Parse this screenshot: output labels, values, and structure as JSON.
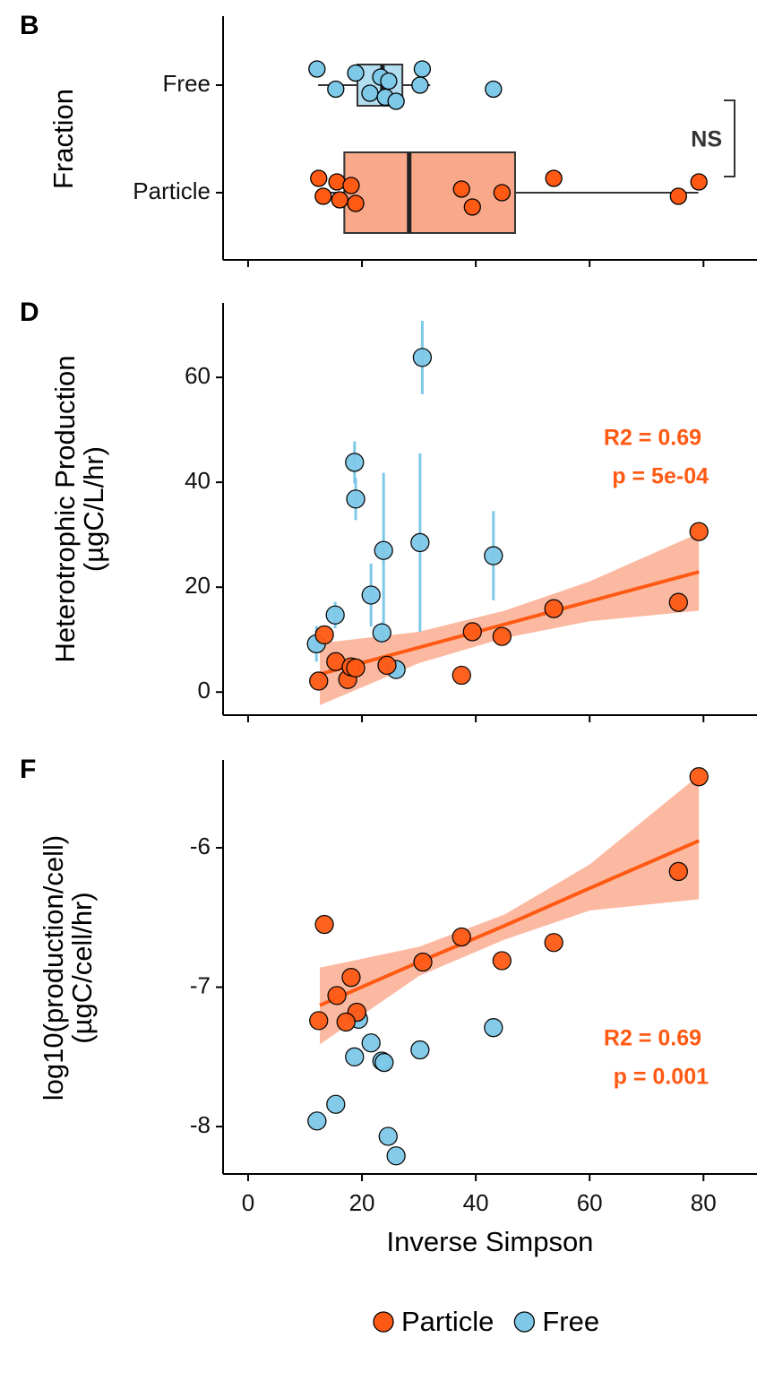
{
  "chart_data": [
    {
      "type": "boxplot",
      "panel": "B",
      "y_label": "Fraction",
      "categories": [
        "Free",
        "Particle"
      ],
      "xlim": [
        -4.4,
        89.4
      ],
      "xticks": [
        0,
        20,
        40,
        60,
        80
      ],
      "boxes": [
        {
          "color": "#B3DDF0",
          "point_color": "#7EC8E8",
          "min": 12.3,
          "q1": 19.2,
          "median": 23.6,
          "q3": 27.1,
          "max": 32.0,
          "points": [
            12.1,
            15.4,
            18.9,
            21.4,
            23.3,
            24.1,
            24.7,
            26.0,
            30.2,
            30.6,
            43.1
          ]
        },
        {
          "color": "#F9A98A",
          "point_color": "#FF5A14",
          "min": 12.3,
          "q1": 16.9,
          "median": 28.3,
          "q3": 46.9,
          "max": 79.1,
          "points": [
            12.4,
            13.2,
            15.6,
            16.1,
            18.1,
            18.9,
            37.5,
            39.4,
            44.6,
            53.7,
            75.6,
            79.2
          ]
        }
      ],
      "annotation": "NS"
    },
    {
      "type": "scatter",
      "panel": "D",
      "y_label": [
        "Heterotrophic Production",
        "(µgC/L/hr)"
      ],
      "xlim": [
        -4.4,
        89.4
      ],
      "xticks": [
        0,
        20,
        40,
        60,
        80
      ],
      "ylim": [
        -4.4,
        74.2
      ],
      "yticks": [
        0,
        20,
        40,
        60
      ],
      "series": [
        {
          "name": "Particle",
          "color": "#FF5A14",
          "x": [
            12.4,
            13.4,
            15.4,
            17.5,
            18.1,
            18.9,
            24.4,
            37.5,
            39.4,
            44.6,
            53.7,
            75.6,
            79.2
          ],
          "values": [
            2.1,
            10.9,
            5.8,
            2.4,
            4.8,
            4.6,
            5.1,
            3.2,
            11.5,
            10.6,
            15.9,
            17.1,
            30.6
          ]
        },
        {
          "name": "Free",
          "color": "#7EC8E8",
          "x": [
            12.0,
            15.3,
            18.7,
            18.9,
            21.6,
            23.5,
            23.8,
            26.0,
            30.2,
            30.6,
            43.1
          ],
          "values": [
            9.2,
            14.7,
            43.8,
            36.8,
            18.5,
            11.3,
            27.0,
            4.3,
            28.5,
            63.8,
            26.0
          ],
          "errors": [
            3.4,
            2.5,
            4,
            4,
            6,
            2,
            14.8,
            1,
            17,
            7,
            8.5
          ]
        }
      ],
      "fit": {
        "color": "#FF5A14",
        "band_color": "#FBA88A",
        "x": [
          12.6,
          30,
          45,
          60,
          79.2
        ],
        "values": [
          3.4,
          8.5,
          12.9,
          17.3,
          22.9
        ],
        "lower": [
          -2.5,
          5.5,
          10.3,
          13.5,
          15.5
        ],
        "upper": [
          9.3,
          11.5,
          15.5,
          21.1,
          30.3
        ]
      },
      "annotations": [
        "R2 = 0.69",
        "p = 5e-04"
      ]
    },
    {
      "type": "scatter",
      "panel": "F",
      "y_label": [
        "log10(production/cell)",
        "(µgC/cell/hr)"
      ],
      "x_label": "Inverse Simpson",
      "xlim": [
        -4.4,
        89.4
      ],
      "xticks": [
        0,
        20,
        40,
        60,
        80
      ],
      "ylim": [
        -8.34,
        -5.37
      ],
      "yticks": [
        -8,
        -7,
        -6
      ],
      "series": [
        {
          "name": "Particle",
          "color": "#FF5A14",
          "x": [
            13.4,
            79.2,
            75.6,
            37.5,
            53.7,
            44.6,
            30.7,
            18.1,
            15.6,
            19.1,
            12.4,
            17.2
          ],
          "values": [
            -6.55,
            -5.49,
            -6.17,
            -6.64,
            -6.68,
            -6.81,
            -6.82,
            -6.93,
            -7.06,
            -7.18,
            -7.24,
            -7.25
          ]
        },
        {
          "name": "Free",
          "color": "#7EC8E8",
          "x": [
            19.4,
            21.6,
            43.1,
            30.2,
            18.7,
            23.5,
            23.9,
            15.4,
            12.1,
            24.6,
            26.0
          ],
          "values": [
            -7.23,
            -7.4,
            -7.29,
            -7.45,
            -7.5,
            -7.53,
            -7.54,
            -7.84,
            -7.96,
            -8.07,
            -8.21
          ]
        }
      ],
      "fit": {
        "color": "#FF5A14",
        "band_color": "#FBA88A",
        "x": [
          12.6,
          30,
          45,
          60,
          79.2
        ],
        "values": [
          -7.13,
          -6.82,
          -6.56,
          -6.29,
          -5.95
        ],
        "lower": [
          -7.41,
          -6.92,
          -6.66,
          -6.45,
          -6.37
        ],
        "upper": [
          -6.86,
          -6.71,
          -6.48,
          -6.12,
          -5.48
        ]
      },
      "annotations": [
        "R2 = 0.69",
        "p = 0.001"
      ],
      "legend": "bottom"
    }
  ]
}
